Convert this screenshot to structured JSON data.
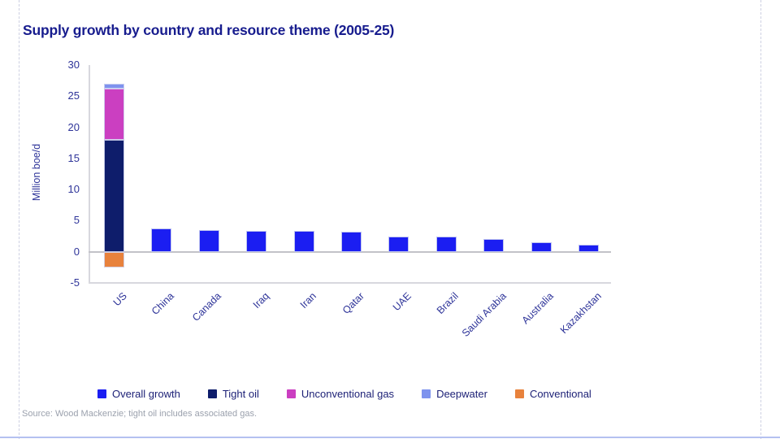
{
  "title": "Supply growth by country and resource theme (2005-25)",
  "source_note": "Source: Wood Mackenzie; tight oil includes associated gas.",
  "chart_data": {
    "type": "bar",
    "stacked": true,
    "title": "Supply growth by country and resource theme (2005-25)",
    "xlabel": "",
    "ylabel": "Million boe/d",
    "ylim": [
      -5,
      30
    ],
    "yticks": [
      30,
      25,
      20,
      15,
      10,
      5,
      0,
      -5
    ],
    "grid": false,
    "legend_position": "bottom",
    "categories": [
      "US",
      "China",
      "Canada",
      "Iraq",
      "Iran",
      "Qatar",
      "UAE",
      "Brazil",
      "Saudi Arabia",
      "Australia",
      "Kazakhstan"
    ],
    "series": [
      {
        "name": "Overall growth",
        "color": "#1b1ef2",
        "values": [
          0,
          3.7,
          3.5,
          3.4,
          3.4,
          3.2,
          2.5,
          2.4,
          2.0,
          1.5,
          1.2
        ]
      },
      {
        "name": "Tight oil",
        "color": "#0e1d6b",
        "values": [
          18.0,
          0,
          0,
          0,
          0,
          0,
          0,
          0,
          0,
          0,
          0
        ]
      },
      {
        "name": "Unconventional gas",
        "color": "#cb3fc1",
        "values": [
          8.2,
          0,
          0,
          0,
          0,
          0,
          0,
          0,
          0,
          0,
          0
        ]
      },
      {
        "name": "Deepwater",
        "color": "#7e93ee",
        "values": [
          0.8,
          0,
          0,
          0,
          0,
          0,
          0,
          0,
          0,
          0,
          0
        ]
      },
      {
        "name": "Conventional",
        "color": "#e8823c",
        "values": [
          -2.5,
          0,
          0,
          0,
          0,
          0,
          0,
          0,
          0,
          0,
          0
        ]
      }
    ]
  },
  "colors": {
    "title_text": "#171c8e",
    "axis_text": "#2e3499",
    "legend_text": "#1e2277",
    "axis_line": "#d8d8de",
    "zero_line": "#c2c2c8",
    "source_text": "#9ba1ad",
    "guide_dash": "#cdd0e2",
    "bottom_accent": "#b4c1f0"
  }
}
